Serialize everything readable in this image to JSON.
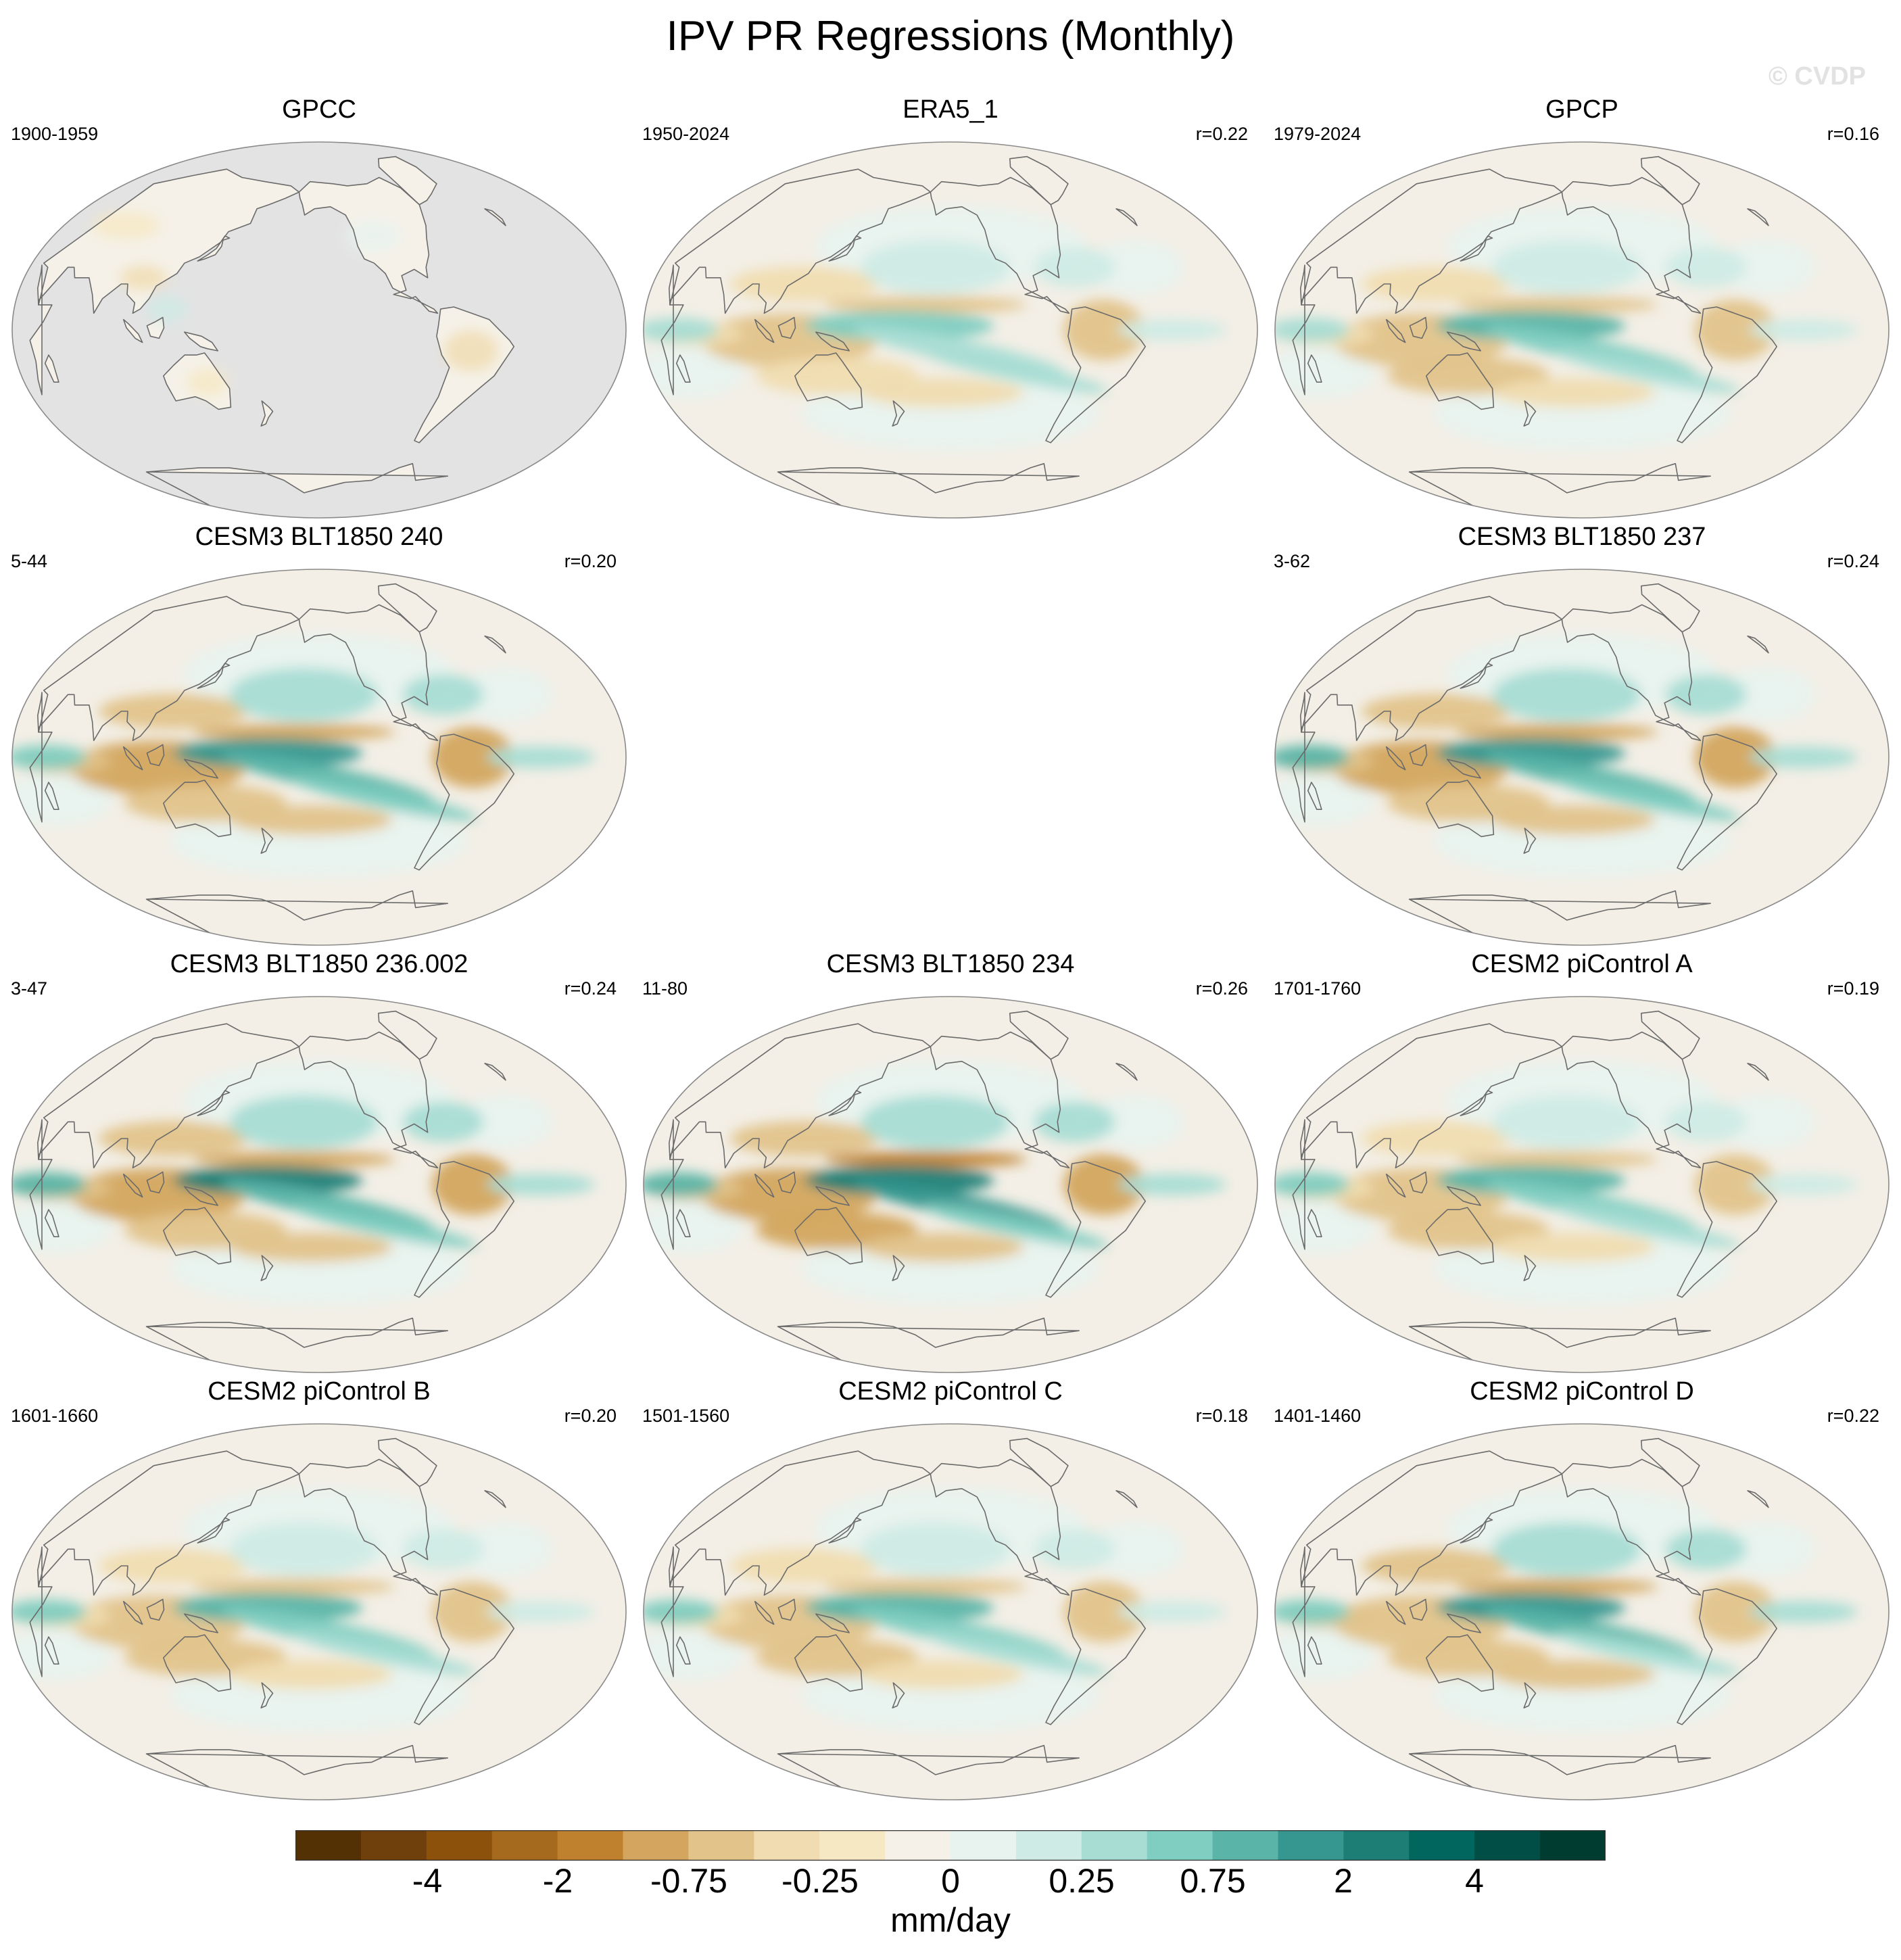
{
  "title": "IPV PR Regressions (Monthly)",
  "watermark": "© CVDP",
  "units": "mm/day",
  "colors": {
    "land_mask_gray": "#e3e3e3",
    "coastline": "#6b6b6b",
    "border": "#8a8a8a",
    "colorbar": [
      "#543005",
      "#6f3f0c",
      "#8c510a",
      "#a66a1f",
      "#bf812d",
      "#d3a55e",
      "#e2c38a",
      "#f0dcb0",
      "#f6e8c3",
      "#f5f1e8",
      "#e8f3ef",
      "#cfebe5",
      "#a8ddd4",
      "#80cdc1",
      "#5ab4a8",
      "#35978f",
      "#1d7e76",
      "#01665e",
      "#014e47",
      "#003c30"
    ]
  },
  "colorbar_ticks": [
    "-4",
    "-2",
    "-0.75",
    "-0.25",
    "0",
    "0.25",
    "0.75",
    "2",
    "4"
  ],
  "panels": [
    {
      "id": "gpcc",
      "title": "GPCC",
      "period": "1900-1959",
      "corr": "",
      "strength": 0.25,
      "masked": true
    },
    {
      "id": "era5",
      "title": "ERA5_1",
      "period": "1950-2024",
      "corr": "r=0.22",
      "strength": 0.55,
      "masked": false
    },
    {
      "id": "gpcp",
      "title": "GPCP",
      "period": "1979-2024",
      "corr": "r=0.16",
      "strength": 0.6,
      "masked": false
    },
    {
      "id": "cesm3-240",
      "title": "CESM3 BLT1850 240",
      "period": "5-44",
      "corr": "r=0.20",
      "strength": 0.85,
      "masked": false
    },
    {
      "id": "cesm3-237",
      "title": "CESM3 BLT1850 237",
      "period": "3-62",
      "corr": "r=0.24",
      "strength": 0.9,
      "masked": false
    },
    {
      "id": "cesm3-236",
      "title": "CESM3 BLT1850 236.002",
      "period": "3-47",
      "corr": "r=0.24",
      "strength": 0.95,
      "masked": false
    },
    {
      "id": "cesm3-234",
      "title": "CESM3 BLT1850 234",
      "period": "11-80",
      "corr": "r=0.26",
      "strength": 1.0,
      "masked": false
    },
    {
      "id": "cesm2-a",
      "title": "CESM2 piControl A",
      "period": "1701-1760",
      "corr": "r=0.19",
      "strength": 0.7,
      "masked": false
    },
    {
      "id": "cesm2-b",
      "title": "CESM2 piControl B",
      "period": "1601-1660",
      "corr": "r=0.20",
      "strength": 0.7,
      "masked": false
    },
    {
      "id": "cesm2-c",
      "title": "CESM2 piControl C",
      "period": "1501-1560",
      "corr": "r=0.18",
      "strength": 0.7,
      "masked": false
    },
    {
      "id": "cesm2-d",
      "title": "CESM2 piControl D",
      "period": "1401-1460",
      "corr": "r=0.22",
      "strength": 0.8,
      "masked": false
    }
  ]
}
